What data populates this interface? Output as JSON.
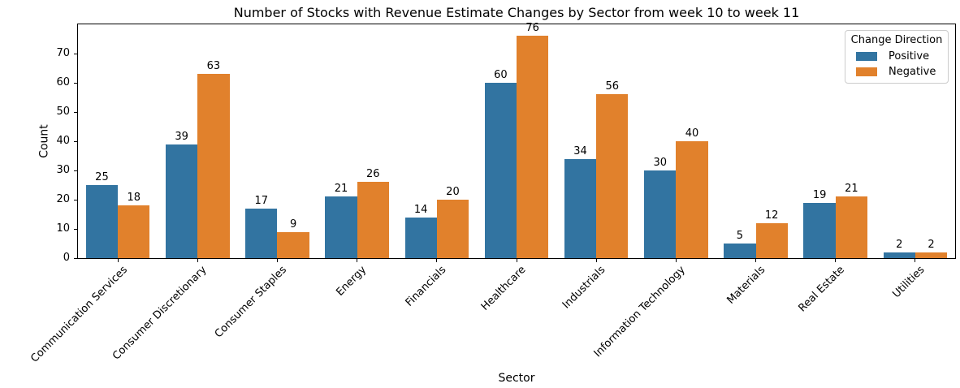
{
  "chart_data": {
    "type": "bar",
    "title": "Number of Stocks with Revenue Estimate Changes by Sector from week 10 to week 11",
    "xlabel": "Sector",
    "ylabel": "Count",
    "categories": [
      "Communication Services",
      "Consumer Discretionary",
      "Consumer Staples",
      "Energy",
      "Financials",
      "Healthcare",
      "Industrials",
      "Information Technology",
      "Materials",
      "Real Estate",
      "Utilities"
    ],
    "series": [
      {
        "name": "Positive",
        "color": "#3274a1",
        "values": [
          25,
          39,
          17,
          21,
          14,
          60,
          34,
          30,
          5,
          19,
          2
        ]
      },
      {
        "name": "Negative",
        "color": "#e1812c",
        "values": [
          18,
          63,
          9,
          26,
          20,
          76,
          56,
          40,
          12,
          21,
          2
        ]
      }
    ],
    "ylim": [
      0,
      80
    ],
    "yticks": [
      0,
      10,
      20,
      30,
      40,
      50,
      60,
      70
    ],
    "grid": false,
    "bar_value_labels": true,
    "legend": {
      "title": "Change Direction",
      "position": "upper right"
    }
  }
}
